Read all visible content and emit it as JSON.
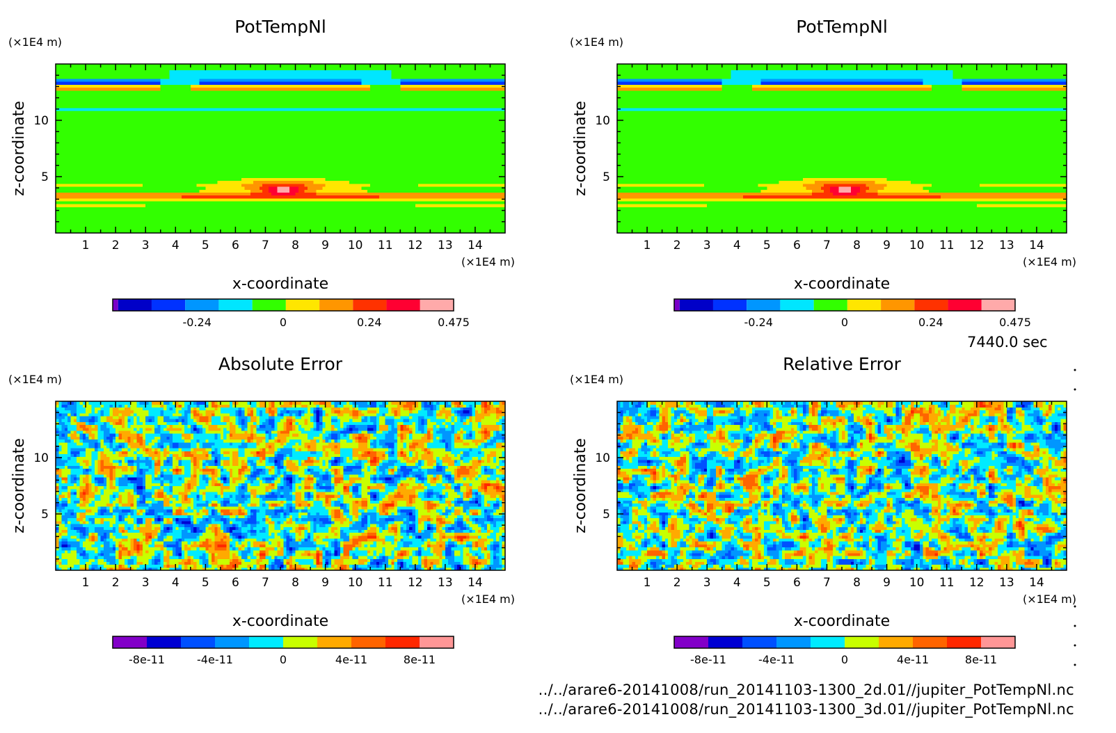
{
  "colors": {
    "pot_scale": [
      "#7a00c8",
      "#0000c8",
      "#0032ff",
      "#0096ff",
      "#00e6ff",
      "#32ff00",
      "#ffe600",
      "#ff9600",
      "#ff3200",
      "#ff0032",
      "#ffaaaa"
    ],
    "err_scale": [
      "#8200c8",
      "#0000d2",
      "#0050ff",
      "#0096ff",
      "#00ebff",
      "#c8ff00",
      "#ffaa00",
      "#ff6400",
      "#ff2800",
      "#ff9696"
    ]
  },
  "chart_data": [
    {
      "type": "heatmap",
      "title": "PotTempNl",
      "xlabel": "x-coordinate",
      "ylabel": "z-coordinate",
      "x_unit": "(×1E4 m)",
      "y_unit": "(×1E4 m)",
      "xlim": [
        0,
        15
      ],
      "ylim": [
        0,
        15
      ],
      "x_ticks": [
        1,
        2,
        3,
        4,
        5,
        6,
        7,
        8,
        9,
        10,
        11,
        12,
        13,
        14
      ],
      "y_ticks": [
        5,
        10
      ],
      "colorbar": {
        "ticks": [
          "-0.24",
          "0",
          "0.24",
          "0.475"
        ],
        "range": [
          -0.475,
          0.475
        ],
        "levels": 11
      },
      "field": "pot_temp"
    },
    {
      "type": "heatmap",
      "title": "PotTempNl",
      "xlabel": "x-coordinate",
      "ylabel": "z-coordinate",
      "x_unit": "(×1E4 m)",
      "y_unit": "(×1E4 m)",
      "xlim": [
        0,
        15
      ],
      "ylim": [
        0,
        15
      ],
      "x_ticks": [
        1,
        2,
        3,
        4,
        5,
        6,
        7,
        8,
        9,
        10,
        11,
        12,
        13,
        14
      ],
      "y_ticks": [
        5,
        10
      ],
      "colorbar": {
        "ticks": [
          "-0.24",
          "0",
          "0.24",
          "0.475"
        ],
        "range": [
          -0.475,
          0.475
        ],
        "levels": 11
      },
      "field": "pot_temp"
    },
    {
      "type": "heatmap",
      "title": "Absolute Error",
      "xlabel": "x-coordinate",
      "ylabel": "z-coordinate",
      "x_unit": "(×1E4 m)",
      "y_unit": "(×1E4 m)",
      "xlim": [
        0,
        15
      ],
      "ylim": [
        0,
        15
      ],
      "x_ticks": [
        1,
        2,
        3,
        4,
        5,
        6,
        7,
        8,
        9,
        10,
        11,
        12,
        13,
        14
      ],
      "y_ticks": [
        5,
        10
      ],
      "colorbar": {
        "ticks": [
          "-8e-11",
          "-4e-11",
          "0",
          "4e-11",
          "8e-11"
        ],
        "range": [
          -1e-10,
          1e-10
        ],
        "levels": 10
      },
      "field": "noise"
    },
    {
      "type": "heatmap",
      "title": "Relative Error",
      "xlabel": "x-coordinate",
      "ylabel": "z-coordinate",
      "x_unit": "(×1E4 m)",
      "y_unit": "(×1E4 m)",
      "xlim": [
        0,
        15
      ],
      "ylim": [
        0,
        15
      ],
      "x_ticks": [
        1,
        2,
        3,
        4,
        5,
        6,
        7,
        8,
        9,
        10,
        11,
        12,
        13,
        14
      ],
      "y_ticks": [
        5,
        10
      ],
      "colorbar": {
        "ticks": [
          "-8e-11",
          "-4e-11",
          "0",
          "4e-11",
          "8e-11"
        ],
        "range": [
          -1e-10,
          1e-10
        ],
        "levels": 10
      },
      "field": "noise"
    }
  ],
  "time_label": "7440.0 sec",
  "footer": {
    "file_2d": "../../arare6-20141008/run_20141103-1300_2d.01//jupiter_PotTempNl.nc",
    "file_3d": "../../arare6-20141008/run_20141103-1300_3d.01//jupiter_PotTempNl.nc"
  }
}
